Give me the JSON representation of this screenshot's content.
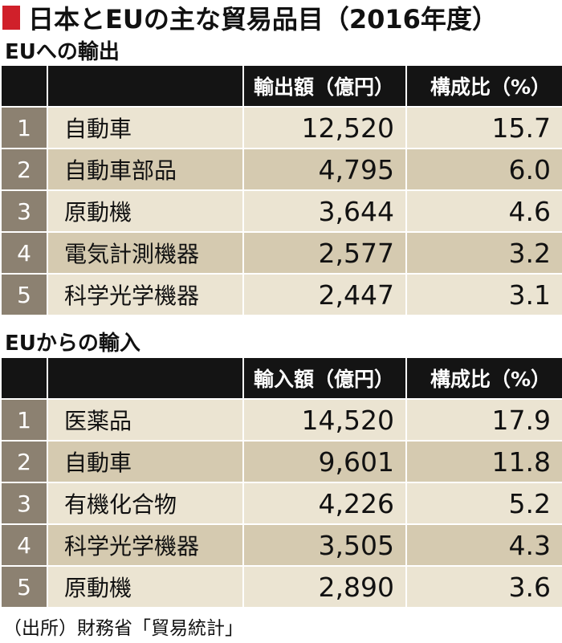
{
  "title": "日本とEUの主な貿易品目（2016年度）",
  "chart_data": [
    {
      "type": "table",
      "section": "EUへの輸出",
      "headers": [
        "",
        "",
        "輸出額（億円）",
        "構成比（%）"
      ],
      "rows": [
        {
          "rank": "1",
          "item": "自動車",
          "value": "12,520",
          "share": "15.7"
        },
        {
          "rank": "2",
          "item": "自動車部品",
          "value": "4,795",
          "share": "6.0"
        },
        {
          "rank": "3",
          "item": "原動機",
          "value": "3,644",
          "share": "4.6"
        },
        {
          "rank": "4",
          "item": "電気計測機器",
          "value": "2,577",
          "share": "3.2"
        },
        {
          "rank": "5",
          "item": "科学光学機器",
          "value": "2,447",
          "share": "3.1"
        }
      ]
    },
    {
      "type": "table",
      "section": "EUからの輸入",
      "headers": [
        "",
        "",
        "輸入額（億円）",
        "構成比（%）"
      ],
      "rows": [
        {
          "rank": "1",
          "item": "医薬品",
          "value": "14,520",
          "share": "17.9"
        },
        {
          "rank": "2",
          "item": "自動車",
          "value": "9,601",
          "share": "11.8"
        },
        {
          "rank": "3",
          "item": "有機化合物",
          "value": "4,226",
          "share": "5.2"
        },
        {
          "rank": "4",
          "item": "科学光学機器",
          "value": "3,505",
          "share": "4.3"
        },
        {
          "rank": "5",
          "item": "原動機",
          "value": "2,890",
          "share": "3.6"
        }
      ]
    }
  ],
  "source": "（出所）財務省「貿易統計」",
  "colors": {
    "title_mark": "#d0202a",
    "header_bg": "#141414",
    "rank_bg": "#8c8171",
    "row_light": "#ebe4d2",
    "row_dark": "#d5cab0"
  }
}
